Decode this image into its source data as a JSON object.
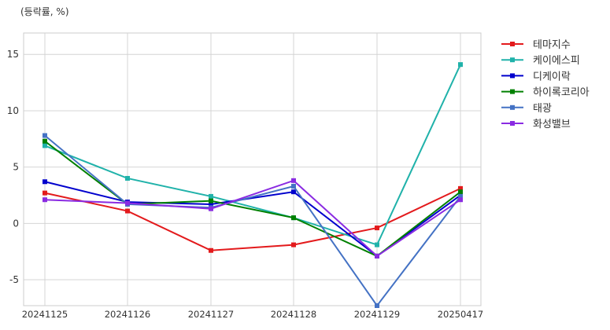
{
  "chart_data": {
    "type": "line",
    "unit_label": "(등락률, %)",
    "categories": [
      "20241125",
      "20241126",
      "20241127",
      "20241128",
      "20241129",
      "20250417"
    ],
    "ylim": [
      -7.3,
      16.9
    ],
    "yticks": [
      -5,
      0,
      5,
      10,
      15
    ],
    "grid": true,
    "legend_position": "right",
    "series": [
      {
        "name": "테마지수",
        "color": "#e31a1c",
        "values": [
          2.7,
          1.1,
          -2.4,
          -1.9,
          -0.4,
          3.1
        ]
      },
      {
        "name": "케이에스피",
        "color": "#20b2aa",
        "values": [
          6.9,
          4.0,
          2.4,
          0.5,
          -1.9,
          14.1
        ]
      },
      {
        "name": "디케이락",
        "color": "#0000cd",
        "values": [
          3.7,
          1.9,
          1.7,
          2.8,
          -2.9,
          2.5
        ]
      },
      {
        "name": "하이록코리아",
        "color": "#008000",
        "values": [
          7.3,
          1.7,
          2.0,
          0.5,
          -2.9,
          2.8
        ]
      },
      {
        "name": "태광",
        "color": "#4472c4",
        "values": [
          7.8,
          1.7,
          1.4,
          3.3,
          -7.3,
          2.4
        ]
      },
      {
        "name": "화성밸브",
        "color": "#8a2be2",
        "values": [
          2.1,
          1.8,
          1.3,
          3.8,
          -2.9,
          2.1
        ]
      }
    ]
  }
}
